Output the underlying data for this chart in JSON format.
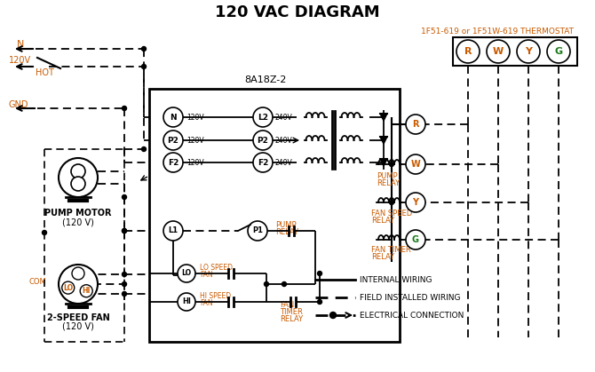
{
  "title": "120 VAC DIAGRAM",
  "title_color": "#000000",
  "title_fontsize": 13,
  "background_color": "#ffffff",
  "thermostat_label": "1F51-619 or 1F51W-619 THERMOSTAT",
  "thermostat_color": "#c85a00",
  "green_color": "#1a7a1a",
  "controller_label": "8A18Z-2",
  "line_color": "#000000",
  "orange_color": "#c85a00"
}
